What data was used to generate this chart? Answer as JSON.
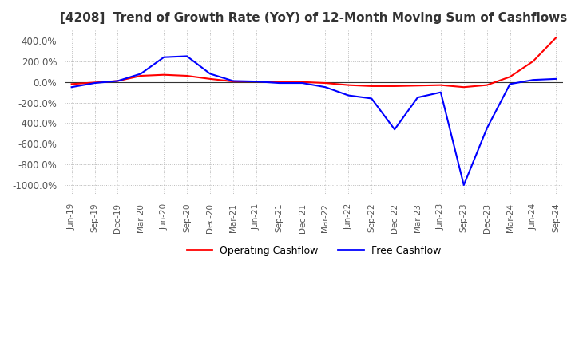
{
  "title": "[4208]  Trend of Growth Rate (YoY) of 12-Month Moving Sum of Cashflows",
  "title_fontsize": 11,
  "ylim": [
    -1100,
    500
  ],
  "yticks": [
    400,
    200,
    0,
    -200,
    -400,
    -600,
    -800,
    -1000
  ],
  "background_color": "#ffffff",
  "grid_color": "#bbbbbb",
  "operating_color": "#ff0000",
  "free_color": "#0000ff",
  "legend_labels": [
    "Operating Cashflow",
    "Free Cashflow"
  ],
  "x_labels": [
    "Jun-19",
    "Sep-19",
    "Dec-19",
    "Mar-20",
    "Jun-20",
    "Sep-20",
    "Dec-20",
    "Mar-21",
    "Jun-21",
    "Sep-21",
    "Dec-21",
    "Mar-22",
    "Jun-22",
    "Sep-22",
    "Dec-22",
    "Mar-23",
    "Jun-23",
    "Sep-23",
    "Dec-23",
    "Mar-24",
    "Jun-24",
    "Sep-24"
  ],
  "operating_cashflow": [
    -20,
    -5,
    10,
    60,
    70,
    60,
    30,
    5,
    5,
    5,
    0,
    -10,
    -30,
    -40,
    -40,
    -35,
    -30,
    -50,
    -30,
    50,
    200,
    430
  ],
  "free_cashflow": [
    -50,
    -10,
    10,
    80,
    240,
    250,
    80,
    10,
    5,
    -10,
    -10,
    -50,
    -130,
    -160,
    -460,
    -150,
    -100,
    -1000,
    -450,
    -20,
    20,
    30
  ]
}
